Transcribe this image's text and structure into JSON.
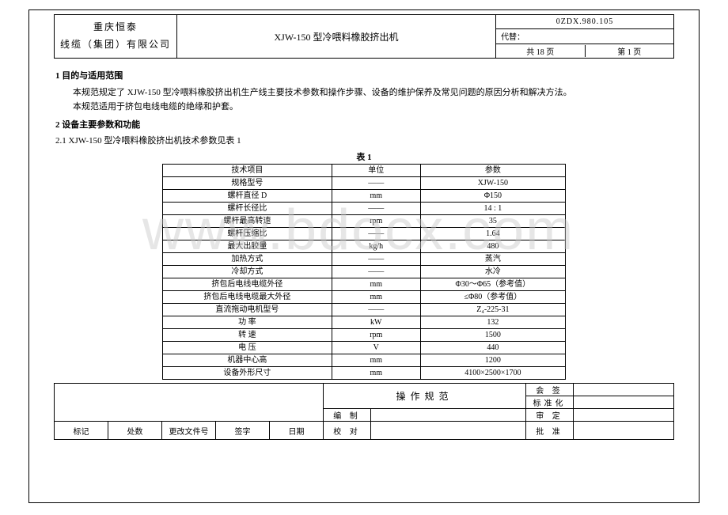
{
  "header": {
    "company_line1": "重庆恒泰",
    "company_line2": "线缆（集团）有限公司",
    "title": "XJW-150 型冷喂料橡胶挤出机",
    "docno": "0ZDX.980.105",
    "sub": "代替：",
    "pages_total_label": "共  18  页",
    "pages_cur_label": "第   1   页"
  },
  "body": {
    "sec1_title": "1 目的与适用范围",
    "sec1_p1": "本规范规定了 XJW-150 型冷喂料橡胶挤出机生产线主要技术参数和操作步骤、设备的维护保养及常见问题的原因分析和解决方法。",
    "sec1_p2": "本规范适用于挤包电线电缆的绝缘和护套。",
    "sec2_title": "2 设备主要参数和功能",
    "sub2_1": "2.1  XJW-150 型冷喂料橡胶挤出机技术参数见表 1",
    "table_caption": "表 1"
  },
  "spec_table": {
    "columns": [
      "技术项目",
      "单位",
      "参数"
    ],
    "col_widths": [
      "42%",
      "22%",
      "36%"
    ],
    "rows": [
      [
        "规格型号",
        "——",
        "XJW-150"
      ],
      [
        "螺杆直径 D",
        "mm",
        "Φ150"
      ],
      [
        "螺杆长径比",
        "——",
        "14 : 1"
      ],
      [
        "螺杆最高转速",
        "rpm",
        "35"
      ],
      [
        "螺杆压缩比",
        "——",
        "1.64"
      ],
      [
        "最大出胶量",
        "kg/h",
        "480"
      ],
      [
        "加热方式",
        "——",
        "蒸汽"
      ],
      [
        "冷却方式",
        "——",
        "水冷"
      ],
      [
        "挤包后电线电缆外径",
        "mm",
        "Φ30～Φ65（参考值）"
      ],
      [
        "挤包后电线电缆最大外径",
        "mm",
        "≤Φ80（参考值）"
      ],
      [
        "直流拖动电机型号",
        "——",
        "Z₄-225-31"
      ],
      [
        "功  率",
        "kW",
        "132"
      ],
      [
        "转  速",
        "rpm",
        "1500"
      ],
      [
        "电  压",
        "V",
        "440"
      ],
      [
        "机器中心高",
        "mm",
        "1200"
      ],
      [
        "设备外形尺寸",
        "mm",
        "4100×2500×1700"
      ]
    ],
    "border_color": "#000000",
    "font_size": 10
  },
  "footer": {
    "mid_title": "操作规范",
    "right_labels": [
      "会  签",
      "标准化",
      "审  定",
      "批  准"
    ],
    "bot_left_labels": [
      "标记",
      "处数",
      "更改文件号",
      "签字",
      "日期"
    ],
    "mid_labels": [
      "编  制",
      "校  对"
    ]
  },
  "watermark": "www.bdocx.com"
}
